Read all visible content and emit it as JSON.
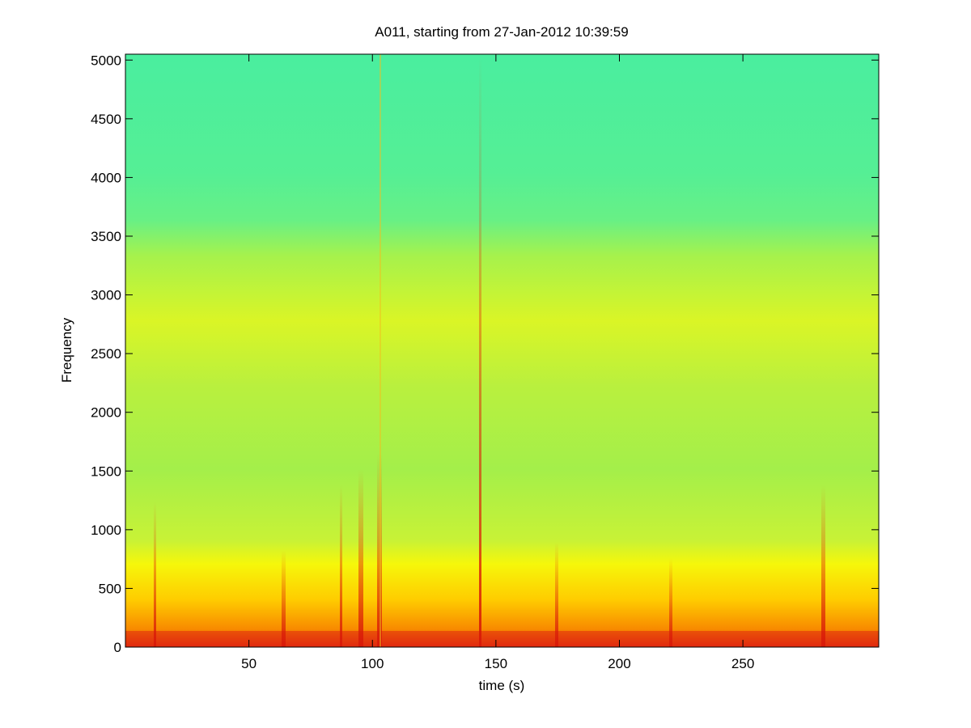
{
  "chart_data": {
    "type": "spectrogram",
    "title": "A011, starting from 27-Jan-2012 10:39:59",
    "x_label": "time (s)",
    "y_label": "Frequency",
    "xlim": [
      0,
      305
    ],
    "xticks": [
      50,
      100,
      150,
      200,
      250
    ],
    "ylim": [
      0,
      5050
    ],
    "yticks": [
      0,
      500,
      1000,
      1500,
      2000,
      2500,
      3000,
      3500,
      4000,
      4500,
      5000
    ]
  }
}
